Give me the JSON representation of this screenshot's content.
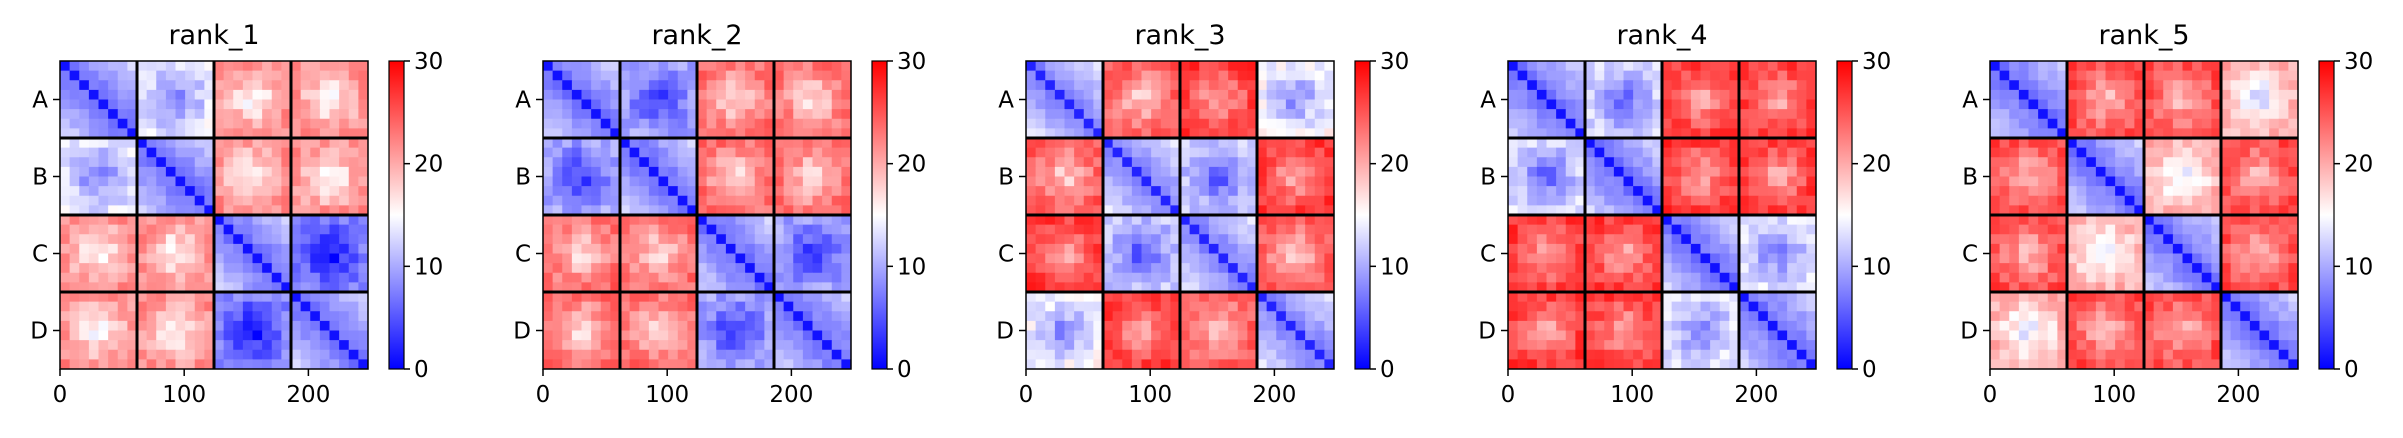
{
  "chart_data": [
    {
      "type": "heatmap",
      "title": "rank_1",
      "row_labels": [
        "A",
        "B",
        "C",
        "D"
      ],
      "x_ticks": [
        0,
        100,
        200
      ],
      "x_range": [
        0,
        248
      ],
      "colorbar": {
        "min": 0,
        "max": 30,
        "ticks": [
          0,
          10,
          20,
          30
        ],
        "colormap": "bwr",
        "low_color": "#0000ff",
        "mid_color": "#ffffff",
        "high_color": "#ff0000"
      },
      "block_values": [
        [
          2,
          14,
          22,
          22
        ],
        [
          14,
          2,
          22,
          22
        ],
        [
          22,
          22,
          2,
          8
        ],
        [
          22,
          22,
          8,
          2
        ]
      ]
    },
    {
      "type": "heatmap",
      "title": "rank_2",
      "row_labels": [
        "A",
        "B",
        "C",
        "D"
      ],
      "x_ticks": [
        0,
        100,
        200
      ],
      "x_range": [
        0,
        248
      ],
      "colorbar": {
        "min": 0,
        "max": 30,
        "ticks": [
          0,
          10,
          20,
          30
        ],
        "colormap": "bwr",
        "low_color": "#0000ff",
        "mid_color": "#ffffff",
        "high_color": "#ff0000"
      },
      "block_values": [
        [
          2,
          10,
          24,
          24
        ],
        [
          10,
          2,
          24,
          24
        ],
        [
          24,
          24,
          2,
          10
        ],
        [
          24,
          24,
          10,
          2
        ]
      ]
    },
    {
      "type": "heatmap",
      "title": "rank_3",
      "row_labels": [
        "A",
        "B",
        "C",
        "D"
      ],
      "x_ticks": [
        0,
        100,
        200
      ],
      "x_range": [
        0,
        248
      ],
      "colorbar": {
        "min": 0,
        "max": 30,
        "ticks": [
          0,
          10,
          20,
          30
        ],
        "colormap": "bwr",
        "low_color": "#0000ff",
        "mid_color": "#ffffff",
        "high_color": "#ff0000"
      },
      "block_values": [
        [
          3,
          25,
          27,
          15
        ],
        [
          25,
          3,
          12,
          27
        ],
        [
          27,
          12,
          3,
          25
        ],
        [
          15,
          27,
          25,
          3
        ]
      ]
    },
    {
      "type": "heatmap",
      "title": "rank_4",
      "row_labels": [
        "A",
        "B",
        "C",
        "D"
      ],
      "x_ticks": [
        0,
        100,
        200
      ],
      "x_range": [
        0,
        248
      ],
      "colorbar": {
        "min": 0,
        "max": 30,
        "ticks": [
          0,
          10,
          20,
          30
        ],
        "colormap": "bwr",
        "low_color": "#0000ff",
        "mid_color": "#ffffff",
        "high_color": "#ff0000"
      },
      "block_values": [
        [
          2,
          13,
          27,
          27
        ],
        [
          13,
          2,
          27,
          27
        ],
        [
          27,
          27,
          2,
          14
        ],
        [
          27,
          27,
          14,
          2
        ]
      ]
    },
    {
      "type": "heatmap",
      "title": "rank_5",
      "row_labels": [
        "A",
        "B",
        "C",
        "D"
      ],
      "x_ticks": [
        0,
        100,
        200
      ],
      "x_range": [
        0,
        248
      ],
      "colorbar": {
        "min": 0,
        "max": 30,
        "ticks": [
          0,
          10,
          20,
          30
        ],
        "colormap": "bwr",
        "low_color": "#0000ff",
        "mid_color": "#ffffff",
        "high_color": "#ff0000"
      },
      "block_values": [
        [
          2,
          26,
          26,
          20
        ],
        [
          26,
          2,
          20,
          26
        ],
        [
          26,
          20,
          2,
          26
        ],
        [
          20,
          26,
          26,
          2
        ]
      ]
    }
  ]
}
